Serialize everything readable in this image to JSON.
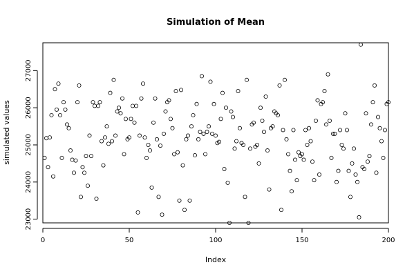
{
  "chart_data": {
    "type": "scatter",
    "title": "Simulation of Mean",
    "xlabel": "Index",
    "ylabel": "simulated values",
    "xlim": [
      0,
      200
    ],
    "ylim": [
      22900,
      27750
    ],
    "x_ticks": [
      0,
      50,
      100,
      150,
      200
    ],
    "y_ticks": [
      23000,
      24000,
      25000,
      26000,
      27000
    ],
    "grid": false,
    "legend": "none",
    "marker": "open-circle",
    "colors": {
      "points": "#000000",
      "axes": "#000000",
      "background": "#ffffff"
    },
    "series": [
      {
        "x": [
          1,
          2,
          3,
          4,
          5,
          6,
          7,
          8,
          9,
          10,
          11,
          12,
          13,
          14,
          15,
          16,
          17,
          18,
          19,
          20,
          21,
          22,
          23,
          24,
          25,
          26,
          27,
          28,
          29,
          30,
          31,
          32,
          33,
          34,
          35,
          36,
          37,
          38,
          39,
          40,
          41,
          42,
          43,
          44,
          45,
          46,
          47,
          48,
          49,
          50,
          51,
          52,
          53,
          54,
          55,
          56,
          57,
          58,
          59,
          60,
          61,
          62,
          63,
          64,
          65,
          66,
          67,
          68,
          69,
          70,
          71,
          72,
          73,
          74,
          75,
          76,
          77,
          78,
          79,
          80,
          81,
          82,
          83,
          84,
          85,
          86,
          87,
          88,
          89,
          90,
          91,
          92,
          93,
          94,
          95,
          96,
          97,
          98,
          99,
          100,
          101,
          102,
          103,
          104,
          105,
          106,
          107,
          108,
          109,
          110,
          111,
          112,
          113,
          114,
          115,
          116,
          117,
          118,
          119,
          120,
          121,
          122,
          123,
          124,
          125,
          126,
          127,
          128,
          129,
          130,
          131,
          132,
          133,
          134,
          135,
          136,
          137,
          138,
          139,
          140,
          141,
          142,
          143,
          144,
          145,
          146,
          147,
          148,
          149,
          150,
          151,
          152,
          153,
          154,
          155,
          156,
          157,
          158,
          159,
          160,
          161,
          162,
          163,
          164,
          165,
          166,
          167,
          168,
          169,
          170,
          171,
          172,
          173,
          174,
          175,
          176,
          177,
          178,
          179,
          180,
          181,
          182,
          183,
          184,
          185,
          186,
          187,
          188,
          189,
          190,
          191,
          192,
          193,
          194,
          195,
          196,
          197,
          198,
          199,
          200
        ],
        "values": [
          24650,
          25180,
          24400,
          25200,
          25800,
          24150,
          26500,
          25950,
          26650,
          25800,
          24650,
          26150,
          25950,
          25550,
          25450,
          24850,
          24600,
          24250,
          24580,
          26150,
          26600,
          23600,
          24400,
          24250,
          24700,
          23900,
          25250,
          24700,
          26150,
          26050,
          23550,
          26050,
          26150,
          25100,
          24450,
          25200,
          25500,
          25030,
          26400,
          25100,
          26750,
          25250,
          25900,
          26000,
          25850,
          26250,
          24750,
          25700,
          25150,
          25200,
          25700,
          26050,
          25600,
          26050,
          23180,
          25250,
          26250,
          26650,
          25200,
          24650,
          25000,
          24850,
          23850,
          25600,
          26250,
          25150,
          23600,
          24980,
          23120,
          25300,
          25900,
          26150,
          26200,
          25700,
          25450,
          24750,
          26450,
          24800,
          23500,
          26480,
          24450,
          23250,
          25150,
          25250,
          23500,
          25500,
          25800,
          24720,
          26100,
          25150,
          25350,
          26850,
          25300,
          24750,
          25350,
          25500,
          26700,
          25300,
          26100,
          25250,
          25050,
          25080,
          25700,
          26400,
          24350,
          26000,
          23980,
          22900,
          25900,
          25750,
          24900,
          25100,
          26450,
          25450,
          25050,
          25000,
          23600,
          26750,
          22900,
          24900,
          25550,
          25600,
          24950,
          25000,
          24500,
          26000,
          25650,
          25350,
          26300,
          24850,
          23800,
          25450,
          25500,
          25900,
          25850,
          25800,
          26600,
          23250,
          25400,
          26750,
          25150,
          24750,
          24300,
          23750,
          25400,
          24600,
          24050,
          24800,
          24700,
          24750,
          24600,
          25400,
          25000,
          25450,
          25100,
          24550,
          24050,
          25650,
          26200,
          24200,
          26100,
          26150,
          26450,
          25550,
          26900,
          25650,
          24650,
          25300,
          25300,
          24000,
          24300,
          25400,
          25000,
          24900,
          25850,
          25400,
          24300,
          23600,
          24500,
          24900,
          24200,
          24000,
          23050,
          27700,
          24400,
          24350,
          25850,
          24550,
          24700,
          25550,
          26150,
          26600,
          24250,
          25750,
          25450,
          25100,
          24650,
          25400,
          26100,
          26150
        ]
      }
    ]
  }
}
